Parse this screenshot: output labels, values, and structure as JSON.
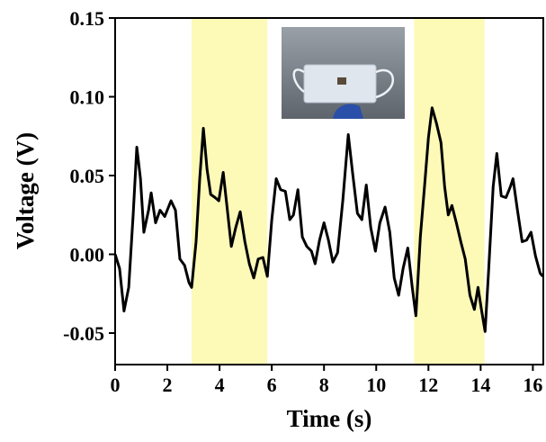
{
  "chart_data": {
    "type": "line",
    "x_label": "Time (s)",
    "y_label": "Voltage (V)",
    "xlim": [
      0,
      16.4
    ],
    "ylim": [
      -0.07,
      0.15
    ],
    "xticks": [
      0,
      2,
      4,
      6,
      8,
      10,
      12,
      14,
      16
    ],
    "yticks": [
      -0.05,
      {
        "value": 0,
        "label": "0.00"
      },
      0.05,
      {
        "value": 0.1,
        "label": "0.10"
      },
      0.15
    ],
    "shaded_regions": [
      [
        2.93,
        5.83
      ],
      [
        11.45,
        14.15
      ]
    ],
    "shade_color": "#fdfab8",
    "x": [
      0,
      0.17,
      0.34,
      0.52,
      0.69,
      0.83,
      0.97,
      1.1,
      1.28,
      1.38,
      1.55,
      1.72,
      1.9,
      2.14,
      2.31,
      2.48,
      2.66,
      2.83,
      2.93,
      3.1,
      3.24,
      3.38,
      3.52,
      3.66,
      3.83,
      3.97,
      4.14,
      4.28,
      4.45,
      4.62,
      4.79,
      4.97,
      5.14,
      5.31,
      5.48,
      5.66,
      5.83,
      6.0,
      6.17,
      6.34,
      6.52,
      6.69,
      6.83,
      7.0,
      7.17,
      7.34,
      7.52,
      7.66,
      7.83,
      8.0,
      8.17,
      8.34,
      8.52,
      8.72,
      8.93,
      9.1,
      9.28,
      9.45,
      9.62,
      9.79,
      9.97,
      10.14,
      10.34,
      10.52,
      10.69,
      10.86,
      11.03,
      11.21,
      11.38,
      11.52,
      11.69,
      11.86,
      12.0,
      12.14,
      12.31,
      12.48,
      12.62,
      12.76,
      12.9,
      13.07,
      13.24,
      13.41,
      13.59,
      13.76,
      13.9,
      14.03,
      14.17,
      14.31,
      14.48,
      14.62,
      14.79,
      14.97,
      15.14,
      15.24,
      15.41,
      15.59,
      15.76,
      15.93,
      16.1,
      16.28,
      16.38
    ],
    "series": [
      {
        "color": "#000000",
        "values": [
          0,
          -0.009,
          -0.036,
          -0.021,
          0.025,
          0.068,
          0.048,
          0.014,
          0.028,
          0.039,
          0.02,
          0.028,
          0.024,
          0.034,
          0.028,
          -0.003,
          -0.007,
          -0.018,
          -0.021,
          0.008,
          0.048,
          0.08,
          0.054,
          0.038,
          0.036,
          0.034,
          0.052,
          0.031,
          0.005,
          0.017,
          0.027,
          0.008,
          -0.006,
          -0.015,
          -0.003,
          -0.002,
          -0.014,
          0.022,
          0.048,
          0.041,
          0.04,
          0.022,
          0.025,
          0.041,
          0.011,
          0.005,
          0.002,
          -0.006,
          0.009,
          0.02,
          0.009,
          -0.005,
          0.001,
          0.034,
          0.076,
          0.051,
          0.026,
          0.022,
          0.044,
          0.017,
          0.002,
          0.02,
          0.03,
          0.014,
          -0.015,
          -0.026,
          -0.009,
          0.004,
          -0.021,
          -0.039,
          0.011,
          0.045,
          0.074,
          0.093,
          0.083,
          0.071,
          0.043,
          0.025,
          0.031,
          0.02,
          0.008,
          -0.003,
          -0.026,
          -0.035,
          -0.021,
          -0.035,
          -0.049,
          -0.009,
          0.043,
          0.064,
          0.037,
          0.036,
          0.043,
          0.048,
          0.028,
          0.008,
          0.009,
          0.014,
          -0.001,
          -0.012,
          -0.014
        ]
      }
    ]
  }
}
